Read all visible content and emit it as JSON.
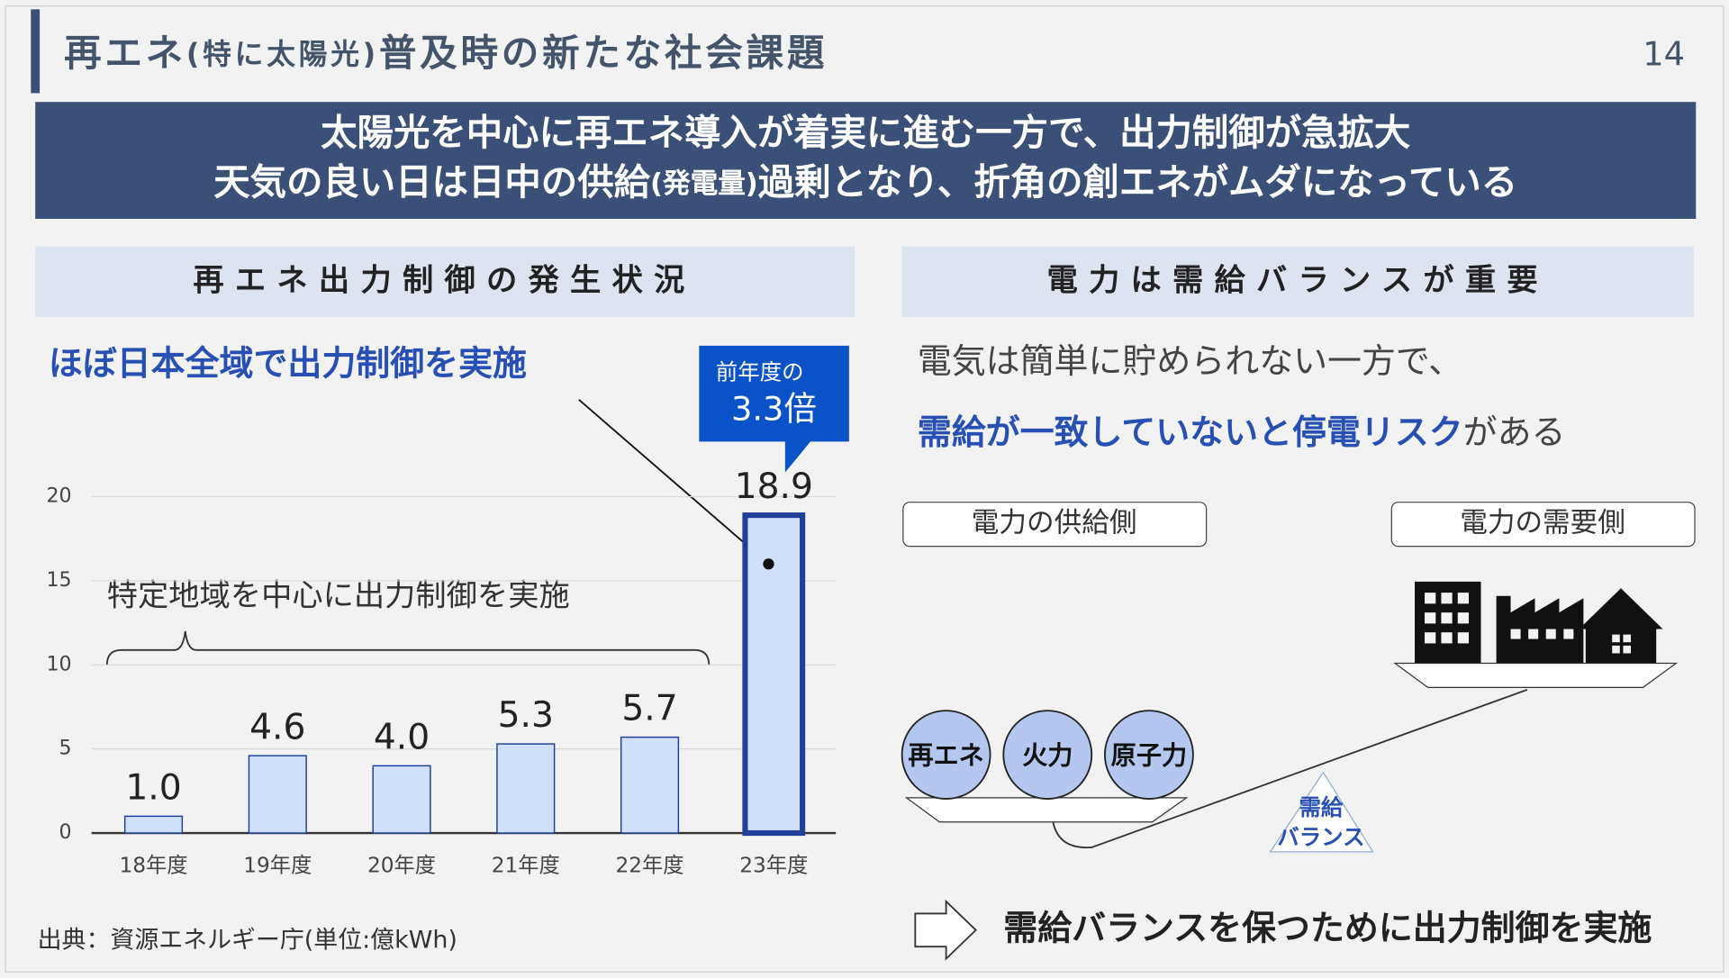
{
  "header": {
    "title": [
      "再エネ",
      "(特に太陽光)",
      "普及時の新たな社会課題"
    ],
    "page": "14"
  },
  "banner": {
    "line1": "太陽光を中心に再エネ導入が着実に進む一方で、出力制御が急拡大",
    "line2": [
      "天気の良い日は日中の供給",
      "(発電量)",
      "過剰となり、折角の創エネがムダになっている"
    ]
  },
  "left": {
    "heading": "再エネ出力制御の発生状況",
    "headline": "ほぼ日本全域で出力制御を実施",
    "callout": [
      "前年度の",
      "3.3倍"
    ],
    "brace_note": "特定地域を中心に出力制御を実施",
    "source": "出典：資源エネルギー庁(単位:億kWh)"
  },
  "chart_data": {
    "type": "bar",
    "categories": [
      "18年度",
      "19年度",
      "20年度",
      "21年度",
      "22年度",
      "23年度"
    ],
    "values": [
      1.0,
      4.6,
      4.0,
      5.3,
      5.7,
      18.9
    ],
    "value_labels": [
      "1.0",
      "4.6",
      "4.0",
      "5.3",
      "5.7",
      "18.9"
    ],
    "ylim": [
      0,
      20
    ],
    "yticks": [
      0,
      5,
      10,
      15,
      20
    ],
    "grid": true,
    "color": "#cfe0fb",
    "edge_color": "#1f3f99",
    "highlight_category": "23年度"
  },
  "right": {
    "heading": "電力は需給バランスが重要",
    "line1": "電気は簡単に貯められない一方で、",
    "line2": [
      "需給が一致していないと停電リスク",
      "がある"
    ],
    "supply": "電力の供給側",
    "demand": "電力の需要側",
    "sources": [
      "再エネ",
      "火力",
      "原子力"
    ],
    "balance": [
      "需給",
      "バランス"
    ],
    "conclusion": "需給バランスを保つために出力制御を実施"
  }
}
